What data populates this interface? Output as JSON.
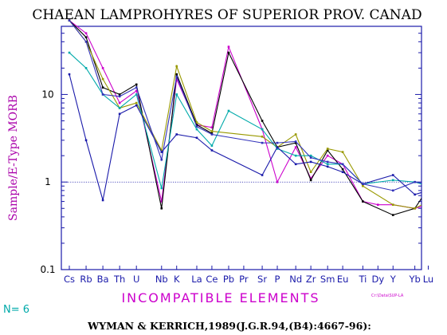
{
  "chart_data": {
    "type": "line",
    "title": "CHAEAN LAMPROHYRES OF SUPERIOR PROV. CANAD",
    "ylabel": "Sample/E-Type MORB",
    "xlabel": "INCOMPATIBLE ELEMENTS",
    "yscale": "log",
    "ylim": [
      0.1,
      60
    ],
    "y_ticks": [
      0.1,
      1,
      10
    ],
    "y_tick_labels": [
      "0.1",
      "1",
      "10"
    ],
    "reference_line": 1,
    "categories": [
      "Cs",
      "Rb",
      "Ba",
      "Th",
      "U",
      "Nb",
      "K",
      "La",
      "Ce",
      "Pb",
      "Pr",
      "Sr",
      "P",
      "Nd",
      "Zr",
      "Sm",
      "Eu",
      "Ti",
      "Dy",
      "Y",
      "Yb",
      "Lu"
    ],
    "category_positions": [
      0,
      1,
      2,
      3,
      4,
      5.5,
      6.4,
      7.6,
      8.5,
      9.5,
      10.4,
      11.5,
      12.4,
      13.5,
      14.4,
      15.4,
      16.3,
      17.5,
      18.4,
      19.3,
      20.6,
      21.4
    ],
    "series": [
      {
        "color": "#cc00cc",
        "points": [
          [
            0,
            70
          ],
          [
            1,
            50
          ],
          [
            2,
            20
          ],
          [
            3,
            8
          ],
          [
            4,
            11
          ],
          [
            5.5,
            0.6
          ],
          [
            6.4,
            15
          ],
          [
            7.6,
            4.5
          ],
          [
            8.5,
            4.2
          ],
          [
            9.5,
            35
          ],
          [
            11.5,
            4
          ],
          [
            12.4,
            1.0
          ],
          [
            13.5,
            2.5
          ],
          [
            14.4,
            1.1
          ],
          [
            15.4,
            2.0
          ],
          [
            16.3,
            1.6
          ],
          [
            17.5,
            0.6
          ],
          [
            18.4,
            0.55
          ],
          [
            19.3,
            0.55
          ],
          [
            20.6,
            0.5
          ],
          [
            21.4,
            0.55
          ]
        ]
      },
      {
        "color": "#000000",
        "points": [
          [
            0,
            70
          ],
          [
            1,
            45
          ],
          [
            2,
            12
          ],
          [
            3,
            10
          ],
          [
            4,
            13
          ],
          [
            5.5,
            0.5
          ],
          [
            6.4,
            17
          ],
          [
            7.6,
            4.5
          ],
          [
            8.5,
            3.6
          ],
          [
            9.5,
            30
          ],
          [
            11.5,
            5
          ],
          [
            12.4,
            2.5
          ],
          [
            13.5,
            2.8
          ],
          [
            14.4,
            1.05
          ],
          [
            15.4,
            2.3
          ],
          [
            16.3,
            1.4
          ],
          [
            17.5,
            0.6
          ],
          [
            19.3,
            0.42
          ],
          [
            20.6,
            0.5
          ],
          [
            21.4,
            0.85
          ]
        ]
      },
      {
        "color": "#999900",
        "points": [
          [
            0,
            70
          ],
          [
            1,
            40
          ],
          [
            2,
            15
          ],
          [
            3,
            7
          ],
          [
            4,
            8
          ],
          [
            5.5,
            2.3
          ],
          [
            6.4,
            21
          ],
          [
            7.6,
            4.8
          ],
          [
            8.5,
            3.8
          ],
          [
            11.5,
            3.3
          ],
          [
            12.4,
            2.5
          ],
          [
            13.5,
            3.5
          ],
          [
            14.4,
            1.3
          ],
          [
            15.4,
            2.4
          ],
          [
            16.3,
            2.2
          ],
          [
            17.5,
            0.9
          ],
          [
            19.3,
            0.55
          ],
          [
            20.6,
            0.5
          ],
          [
            21.4,
            0.6
          ]
        ]
      },
      {
        "color": "#00aaaa",
        "points": [
          [
            0,
            30
          ],
          [
            1,
            20
          ],
          [
            2,
            10
          ],
          [
            3,
            7
          ],
          [
            4,
            10
          ],
          [
            5.5,
            0.85
          ],
          [
            6.4,
            10
          ],
          [
            7.6,
            4
          ],
          [
            8.5,
            2.6
          ],
          [
            9.5,
            6.5
          ],
          [
            11.5,
            4
          ],
          [
            12.4,
            2.4
          ],
          [
            13.5,
            2.0
          ],
          [
            14.4,
            2.0
          ],
          [
            15.4,
            1.6
          ],
          [
            16.3,
            1.6
          ],
          [
            17.5,
            0.95
          ],
          [
            19.3,
            1.05
          ],
          [
            20.6,
            1.0
          ],
          [
            21.4,
            0.9
          ]
        ]
      },
      {
        "color": "#1a1aaa",
        "points": [
          [
            0,
            17
          ],
          [
            1,
            3
          ],
          [
            2,
            0.62
          ],
          [
            3,
            6
          ],
          [
            4,
            7.5
          ],
          [
            5.5,
            2.2
          ],
          [
            6.4,
            3.5
          ],
          [
            7.6,
            3.2
          ],
          [
            8.5,
            2.3
          ],
          [
            11.5,
            1.2
          ],
          [
            12.4,
            2.5
          ],
          [
            13.5,
            1.6
          ],
          [
            14.4,
            1.7
          ],
          [
            15.4,
            1.5
          ],
          [
            16.3,
            1.3
          ],
          [
            17.5,
            0.95
          ],
          [
            19.3,
            1.2
          ],
          [
            20.6,
            0.72
          ],
          [
            21.4,
            0.8
          ]
        ]
      },
      {
        "color": "#3333bb",
        "points": [
          [
            0,
            70
          ],
          [
            1,
            40
          ],
          [
            2,
            10
          ],
          [
            3,
            9.5
          ],
          [
            4,
            12
          ],
          [
            5.5,
            1.8
          ],
          [
            6.4,
            16
          ],
          [
            7.6,
            4.3
          ],
          [
            8.5,
            3.5
          ],
          [
            11.5,
            2.8
          ],
          [
            12.4,
            2.8
          ],
          [
            13.5,
            2.9
          ],
          [
            14.4,
            1.9
          ],
          [
            15.4,
            1.7
          ],
          [
            16.3,
            1.6
          ],
          [
            17.5,
            0.95
          ],
          [
            19.3,
            0.8
          ],
          [
            20.6,
            1.0
          ],
          [
            21.4,
            0.95
          ]
        ]
      }
    ]
  },
  "legend": {
    "n_label": "N= 6",
    "path": "Cr:\\Data\\SUP-LA"
  },
  "citation": "WYMAN & KERRICH,1989(J.G.R.94,(B4):4667-96):",
  "colors": {
    "frame": "#1a1aaa",
    "ylabel": "#aa00aa",
    "xlabel": "#cc00cc",
    "n_label": "#00aaaa",
    "path": "#cc00cc",
    "reference_line": "#1a1aaa"
  }
}
